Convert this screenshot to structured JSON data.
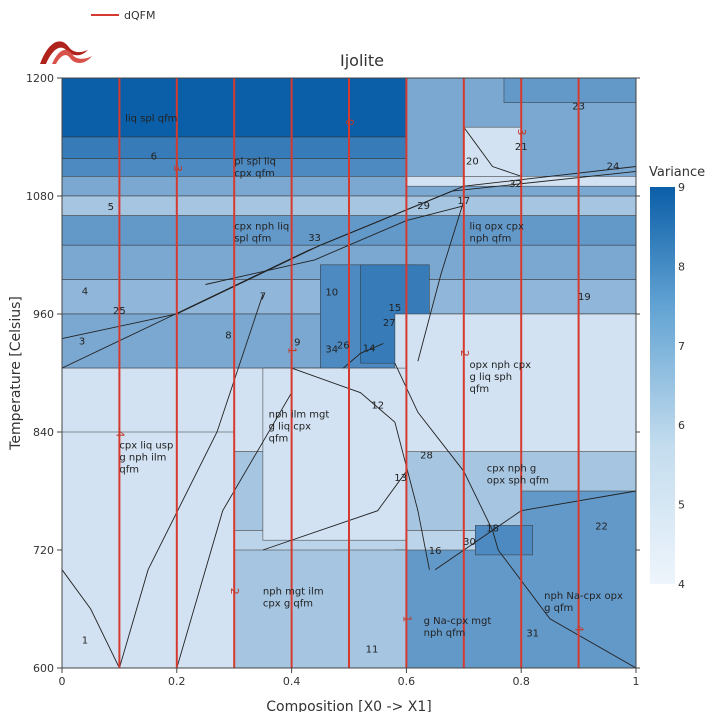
{
  "chart_data": {
    "type": "heatmap",
    "title": "Ijolite",
    "xlabel": "Composition [X0 -> X1]",
    "ylabel": "Temperature [Celsius]",
    "xlim": [
      0,
      1
    ],
    "ylim": [
      600,
      1200
    ],
    "x_ticks": [
      0,
      0.2,
      0.4,
      0.6,
      0.8,
      1
    ],
    "x_tick_labels": [
      "0",
      "0.2",
      "0.4",
      "0.6",
      "0.8",
      "1"
    ],
    "y_ticks": [
      600,
      720,
      840,
      960,
      1080,
      1200
    ],
    "y_tick_labels": [
      "600",
      "720",
      "840",
      "960",
      "1080",
      "1200"
    ],
    "legend": {
      "entries": [
        {
          "name": "dQFM",
          "color": "#d63a2f"
        }
      ],
      "placement": "top-left"
    },
    "colorbar": {
      "title": "Variance",
      "min": 4,
      "max": 9,
      "ticks": [
        4,
        5,
        6,
        7,
        8,
        9
      ],
      "low_color": "#e8f1fa",
      "high_color": "#0b5ea8"
    },
    "isopleths": {
      "name": "dQFM",
      "color": "#d63a2f",
      "lines": [
        {
          "x": 0.1,
          "label": "-4"
        },
        {
          "x": 0.2,
          "label": "-3"
        },
        {
          "x": 0.3,
          "label": "-2"
        },
        {
          "x": 0.4,
          "label": "-1"
        },
        {
          "x": 0.5,
          "label": "0"
        },
        {
          "x": 0.6,
          "label": "1"
        },
        {
          "x": 0.7,
          "label": "2"
        },
        {
          "x": 0.8,
          "label": "3"
        },
        {
          "x": 0.9,
          "label": "4"
        }
      ]
    },
    "bands": [
      {
        "x0": 0,
        "x1": 1,
        "y0": 1140,
        "y1": 1200,
        "variance": 9
      },
      {
        "x0": 0,
        "x1": 1,
        "y0": 1118,
        "y1": 1140,
        "variance": 8
      },
      {
        "x0": 0,
        "x1": 1,
        "y0": 1100,
        "y1": 1118,
        "variance": 7.5
      },
      {
        "x0": 0,
        "x1": 1,
        "y0": 1080,
        "y1": 1100,
        "variance": 6.5
      },
      {
        "x0": 0,
        "x1": 1,
        "y0": 1060,
        "y1": 1080,
        "variance": 5.5
      },
      {
        "x0": 0,
        "x1": 1,
        "y0": 1030,
        "y1": 1060,
        "variance": 7
      },
      {
        "x0": 0,
        "x1": 1,
        "y0": 995,
        "y1": 1030,
        "variance": 6.5
      },
      {
        "x0": 0,
        "x1": 1,
        "y0": 960,
        "y1": 995,
        "variance": 6
      },
      {
        "x0": 0,
        "x1": 1,
        "y0": 905,
        "y1": 960,
        "variance": 6.5
      },
      {
        "x0": 0,
        "x1": 1,
        "y0": 820,
        "y1": 905,
        "variance": 4.5
      },
      {
        "x0": 0,
        "x1": 1,
        "y0": 740,
        "y1": 820,
        "variance": 5.5
      },
      {
        "x0": 0,
        "x1": 1,
        "y0": 600,
        "y1": 740,
        "variance": 5
      }
    ],
    "patches": [
      {
        "x0": 0.45,
        "x1": 0.62,
        "y0": 905,
        "y1": 1010,
        "variance": 7.5
      },
      {
        "x0": 0.52,
        "x1": 0.64,
        "y0": 910,
        "y1": 1010,
        "variance": 8
      },
      {
        "x0": 0.58,
        "x1": 1,
        "y0": 820,
        "y1": 960,
        "variance": 4.5
      },
      {
        "x0": 0.6,
        "x1": 1,
        "y0": 1080,
        "y1": 1200,
        "variance": 6.5
      },
      {
        "x0": 0.77,
        "x1": 1,
        "y0": 1175,
        "y1": 1200,
        "variance": 7
      },
      {
        "x0": 0.7,
        "x1": 0.8,
        "y0": 1100,
        "y1": 1150,
        "variance": 4.5
      },
      {
        "x0": 0.6,
        "x1": 1,
        "y0": 1090,
        "y1": 1100,
        "variance": 4.5
      },
      {
        "x0": 0.8,
        "x1": 1,
        "y0": 600,
        "y1": 780,
        "variance": 7
      },
      {
        "x0": 0.58,
        "x1": 0.8,
        "y0": 600,
        "y1": 720,
        "variance": 7
      },
      {
        "x0": 0.72,
        "x1": 0.82,
        "y0": 715,
        "y1": 745,
        "variance": 7.5
      },
      {
        "x0": 0,
        "x1": 0.3,
        "y0": 600,
        "y1": 840,
        "variance": 4.5
      },
      {
        "x0": 0.3,
        "x1": 0.6,
        "y0": 600,
        "y1": 720,
        "variance": 5.5
      },
      {
        "x0": 0.35,
        "x1": 0.6,
        "y0": 730,
        "y1": 905,
        "variance": 4.5
      }
    ],
    "field_labels": [
      {
        "x": 0.11,
        "y": 1156,
        "text": [
          "liq spl qfm"
        ]
      },
      {
        "x": 0.3,
        "y": 1112,
        "text": [
          "pl spl liq",
          "cpx qfm"
        ]
      },
      {
        "x": 0.3,
        "y": 1046,
        "text": [
          "cpx nph liq",
          "spl qfm"
        ]
      },
      {
        "x": 0.71,
        "y": 1046,
        "text": [
          "liq opx cpx",
          "nph qfm"
        ]
      },
      {
        "x": 0.71,
        "y": 905,
        "text": [
          "opx nph cpx",
          "g liq sph",
          "qfm"
        ]
      },
      {
        "x": 0.36,
        "y": 855,
        "text": [
          "nph ilm mgt",
          "g liq cpx",
          "qfm"
        ]
      },
      {
        "x": 0.1,
        "y": 823,
        "text": [
          "cpx liq usp",
          "g nph ilm",
          "qfm"
        ]
      },
      {
        "x": 0.74,
        "y": 800,
        "text": [
          "cpx nph g",
          "opx sph qfm"
        ]
      },
      {
        "x": 0.35,
        "y": 675,
        "text": [
          "nph mgt ilm",
          "cpx g qfm"
        ]
      },
      {
        "x": 0.63,
        "y": 645,
        "text": [
          "g Na-cpx mgt",
          "nph qfm"
        ]
      },
      {
        "x": 0.84,
        "y": 670,
        "text": [
          "nph Na-cpx opx",
          "g qfm"
        ]
      }
    ],
    "field_numbers": [
      {
        "x": 0.04,
        "y": 625,
        "text": "1"
      },
      {
        "x": -0.01,
        "y": 911,
        "text": "2"
      },
      {
        "x": 0.035,
        "y": 929,
        "text": "3"
      },
      {
        "x": 0.04,
        "y": 980,
        "text": "4"
      },
      {
        "x": 0.085,
        "y": 1066,
        "text": "5"
      },
      {
        "x": 0.16,
        "y": 1117,
        "text": "6"
      },
      {
        "x": 0.35,
        "y": 975,
        "text": "7"
      },
      {
        "x": 0.29,
        "y": 935,
        "text": "8"
      },
      {
        "x": 0.41,
        "y": 928,
        "text": "9"
      },
      {
        "x": 0.47,
        "y": 979,
        "text": "10"
      },
      {
        "x": 0.54,
        "y": 616,
        "text": "11"
      },
      {
        "x": 0.55,
        "y": 864,
        "text": "12"
      },
      {
        "x": 0.59,
        "y": 790,
        "text": "13"
      },
      {
        "x": 0.535,
        "y": 922,
        "text": "14"
      },
      {
        "x": 0.58,
        "y": 963,
        "text": "15"
      },
      {
        "x": 0.65,
        "y": 716,
        "text": "16"
      },
      {
        "x": 0.7,
        "y": 1072,
        "text": "17"
      },
      {
        "x": 0.75,
        "y": 739,
        "text": "18"
      },
      {
        "x": 0.91,
        "y": 974,
        "text": "19"
      },
      {
        "x": 0.715,
        "y": 1112,
        "text": "20"
      },
      {
        "x": 0.8,
        "y": 1127,
        "text": "21"
      },
      {
        "x": 0.94,
        "y": 741,
        "text": "22"
      },
      {
        "x": 0.9,
        "y": 1168,
        "text": "23"
      },
      {
        "x": 0.96,
        "y": 1107,
        "text": "24"
      },
      {
        "x": 0.1,
        "y": 960,
        "text": "25"
      },
      {
        "x": 0.49,
        "y": 925,
        "text": "26"
      },
      {
        "x": 0.57,
        "y": 948,
        "text": "27"
      },
      {
        "x": 0.635,
        "y": 813,
        "text": "28"
      },
      {
        "x": 0.63,
        "y": 1067,
        "text": "29"
      },
      {
        "x": 0.71,
        "y": 725,
        "text": "30"
      },
      {
        "x": 0.82,
        "y": 632,
        "text": "31"
      },
      {
        "x": 0.79,
        "y": 1089,
        "text": "32"
      },
      {
        "x": 0.44,
        "y": 1034,
        "text": "33"
      },
      {
        "x": 0.47,
        "y": 921,
        "text": "34"
      }
    ],
    "boundaries": [
      {
        "points": [
          [
            0,
            935
          ],
          [
            0.2,
            960
          ],
          [
            0.45,
            1030
          ],
          [
            0.7,
            1090
          ],
          [
            1,
            1110
          ]
        ]
      },
      {
        "points": [
          [
            0,
            905
          ],
          [
            0.18,
            955
          ],
          [
            0.43,
            1025
          ],
          [
            0.68,
            1085
          ],
          [
            1,
            1105
          ]
        ]
      },
      {
        "points": [
          [
            0.25,
            990
          ],
          [
            0.44,
            1015
          ],
          [
            0.6,
            1055
          ],
          [
            0.7,
            1070
          ]
        ]
      },
      {
        "points": [
          [
            0.62,
            912
          ],
          [
            0.66,
            1000
          ],
          [
            0.7,
            1075
          ]
        ]
      },
      {
        "points": [
          [
            0.49,
            905
          ],
          [
            0.52,
            920
          ],
          [
            0.56,
            930
          ]
        ]
      },
      {
        "points": [
          [
            0.58,
            910
          ],
          [
            0.62,
            860
          ],
          [
            0.7,
            800
          ],
          [
            0.75,
            740
          ],
          [
            0.76,
            720
          ]
        ]
      },
      {
        "points": [
          [
            0.76,
            720
          ],
          [
            0.85,
            650
          ],
          [
            1,
            600
          ]
        ]
      },
      {
        "points": [
          [
            0.2,
            600
          ],
          [
            0.28,
            760
          ],
          [
            0.4,
            880
          ]
        ]
      },
      {
        "points": [
          [
            0.1,
            600
          ],
          [
            0.15,
            700
          ],
          [
            0.27,
            840
          ],
          [
            0.35,
            980
          ]
        ]
      },
      {
        "points": [
          [
            0.4,
            905
          ],
          [
            0.52,
            880
          ],
          [
            0.58,
            850
          ],
          [
            0.62,
            760
          ],
          [
            0.64,
            700
          ]
        ]
      },
      {
        "points": [
          [
            0.65,
            700
          ],
          [
            0.8,
            760
          ],
          [
            1,
            780
          ]
        ]
      },
      {
        "points": [
          [
            0,
            700
          ],
          [
            0.05,
            660
          ],
          [
            0.1,
            600
          ]
        ]
      },
      {
        "points": [
          [
            0.35,
            720
          ],
          [
            0.55,
            760
          ],
          [
            0.6,
            800
          ]
        ]
      },
      {
        "points": [
          [
            0.7,
            1150
          ],
          [
            0.75,
            1110
          ],
          [
            0.8,
            1100
          ]
        ]
      }
    ]
  }
}
